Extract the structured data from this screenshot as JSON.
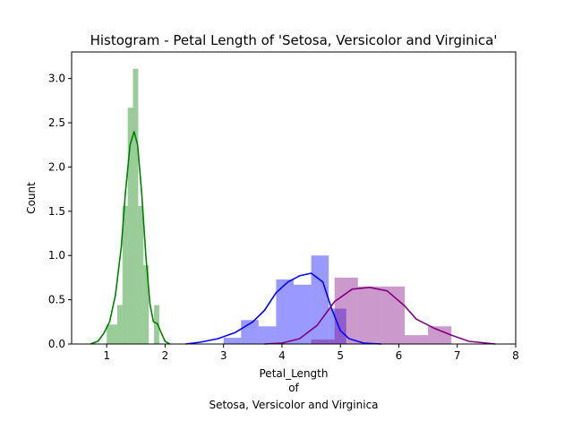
{
  "chart_data": {
    "type": "histogram",
    "title": "Histogram - Petal Length of 'Setosa, Versicolor and Virginica'",
    "xlabel_lines": [
      "Petal_Length",
      "of",
      "Setosa, Versicolor and Virginica"
    ],
    "ylabel": "Count",
    "xlim": [
      0.4,
      8.0
    ],
    "ylim": [
      0,
      3.3
    ],
    "x_ticks": [
      1,
      2,
      3,
      4,
      5,
      6,
      7,
      8
    ],
    "y_ticks": [
      0.0,
      0.5,
      1.0,
      1.5,
      2.0,
      2.5,
      3.0
    ],
    "grid": false,
    "legend": "none",
    "series": [
      {
        "color": "#008000",
        "bar_alpha": 0.4,
        "bins": [
          {
            "x0": 1.0,
            "x1": 1.09,
            "y": 0.22
          },
          {
            "x0": 1.09,
            "x1": 1.18,
            "y": 0.22
          },
          {
            "x0": 1.18,
            "x1": 1.27,
            "y": 0.44
          },
          {
            "x0": 1.27,
            "x1": 1.36,
            "y": 1.56
          },
          {
            "x0": 1.36,
            "x1": 1.45,
            "y": 2.67
          },
          {
            "x0": 1.45,
            "x1": 1.54,
            "y": 3.11
          },
          {
            "x0": 1.54,
            "x1": 1.63,
            "y": 1.56
          },
          {
            "x0": 1.63,
            "x1": 1.72,
            "y": 0.89
          },
          {
            "x0": 1.72,
            "x1": 1.81,
            "y": 0.0
          },
          {
            "x0": 1.81,
            "x1": 1.9,
            "y": 0.44
          }
        ],
        "kde": [
          {
            "x": 0.72,
            "y": 0.0
          },
          {
            "x": 0.85,
            "y": 0.03
          },
          {
            "x": 0.95,
            "y": 0.12
          },
          {
            "x": 1.05,
            "y": 0.25
          },
          {
            "x": 1.15,
            "y": 0.55
          },
          {
            "x": 1.25,
            "y": 1.1
          },
          {
            "x": 1.32,
            "y": 1.7
          },
          {
            "x": 1.4,
            "y": 2.25
          },
          {
            "x": 1.47,
            "y": 2.4
          },
          {
            "x": 1.53,
            "y": 2.25
          },
          {
            "x": 1.6,
            "y": 1.7
          },
          {
            "x": 1.67,
            "y": 1.0
          },
          {
            "x": 1.74,
            "y": 0.45
          },
          {
            "x": 1.8,
            "y": 0.25
          },
          {
            "x": 1.87,
            "y": 0.23
          },
          {
            "x": 1.93,
            "y": 0.13
          },
          {
            "x": 2.0,
            "y": 0.03
          },
          {
            "x": 2.08,
            "y": 0.0
          }
        ]
      },
      {
        "color": "#0000ff",
        "bar_alpha": 0.4,
        "bins": [
          {
            "x0": 3.0,
            "x1": 3.3,
            "y": 0.07
          },
          {
            "x0": 3.3,
            "x1": 3.6,
            "y": 0.27
          },
          {
            "x0": 3.6,
            "x1": 3.9,
            "y": 0.2
          },
          {
            "x0": 3.9,
            "x1": 4.2,
            "y": 0.73
          },
          {
            "x0": 4.2,
            "x1": 4.5,
            "y": 0.67
          },
          {
            "x0": 4.5,
            "x1": 4.8,
            "y": 1.0
          },
          {
            "x0": 4.8,
            "x1": 5.1,
            "y": 0.4
          }
        ],
        "kde": [
          {
            "x": 2.35,
            "y": 0.0
          },
          {
            "x": 2.6,
            "y": 0.02
          },
          {
            "x": 2.9,
            "y": 0.06
          },
          {
            "x": 3.2,
            "y": 0.13
          },
          {
            "x": 3.5,
            "y": 0.25
          },
          {
            "x": 3.7,
            "y": 0.38
          },
          {
            "x": 3.9,
            "y": 0.58
          },
          {
            "x": 4.1,
            "y": 0.7
          },
          {
            "x": 4.3,
            "y": 0.77
          },
          {
            "x": 4.5,
            "y": 0.8
          },
          {
            "x": 4.7,
            "y": 0.7
          },
          {
            "x": 4.85,
            "y": 0.4
          },
          {
            "x": 5.0,
            "y": 0.15
          },
          {
            "x": 5.15,
            "y": 0.06
          },
          {
            "x": 5.4,
            "y": 0.01
          },
          {
            "x": 5.7,
            "y": 0.0
          }
        ]
      },
      {
        "color": "#800080",
        "bar_alpha": 0.4,
        "bins": [
          {
            "x0": 4.5,
            "x1": 4.9,
            "y": 0.05
          },
          {
            "x0": 4.9,
            "x1": 5.3,
            "y": 0.75
          },
          {
            "x0": 5.3,
            "x1": 5.7,
            "y": 0.65
          },
          {
            "x0": 5.7,
            "x1": 6.1,
            "y": 0.65
          },
          {
            "x0": 6.1,
            "x1": 6.5,
            "y": 0.1
          },
          {
            "x0": 6.5,
            "x1": 6.9,
            "y": 0.2
          }
        ],
        "kde": [
          {
            "x": 3.7,
            "y": 0.0
          },
          {
            "x": 4.0,
            "y": 0.01
          },
          {
            "x": 4.3,
            "y": 0.06
          },
          {
            "x": 4.6,
            "y": 0.21
          },
          {
            "x": 4.9,
            "y": 0.48
          },
          {
            "x": 5.2,
            "y": 0.62
          },
          {
            "x": 5.5,
            "y": 0.64
          },
          {
            "x": 5.8,
            "y": 0.6
          },
          {
            "x": 6.1,
            "y": 0.43
          },
          {
            "x": 6.3,
            "y": 0.28
          },
          {
            "x": 6.6,
            "y": 0.18
          },
          {
            "x": 6.9,
            "y": 0.1
          },
          {
            "x": 7.2,
            "y": 0.03
          },
          {
            "x": 7.5,
            "y": 0.01
          },
          {
            "x": 7.65,
            "y": 0.0
          }
        ]
      }
    ]
  }
}
